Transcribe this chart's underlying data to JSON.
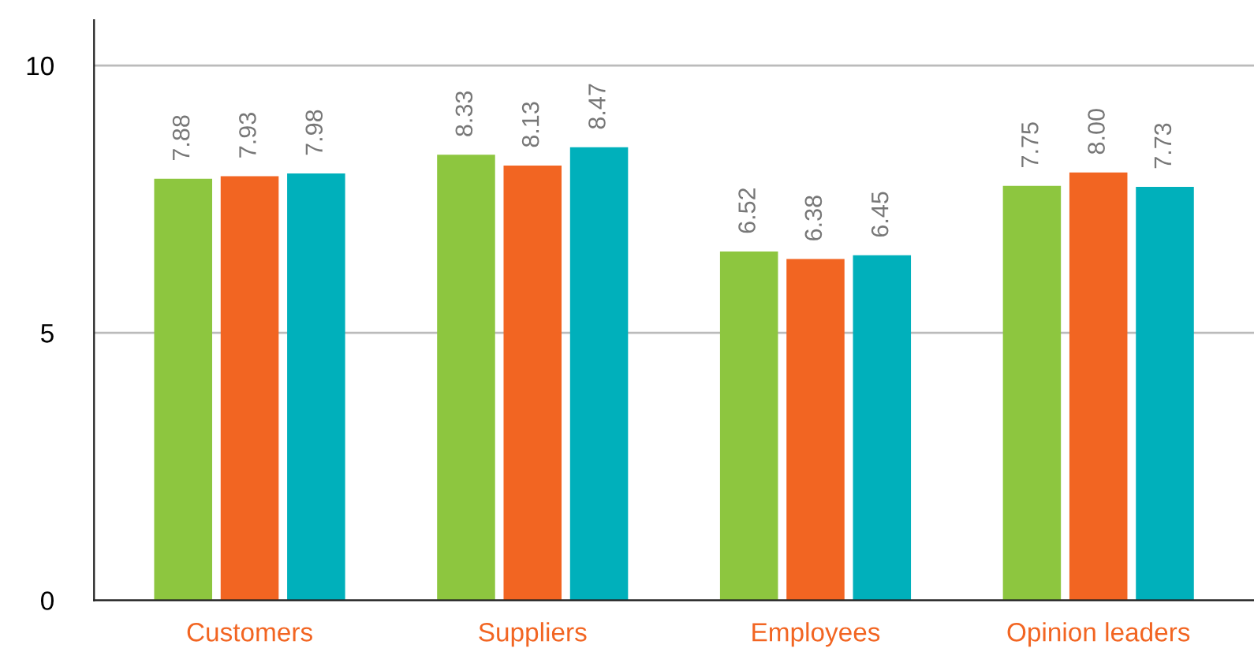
{
  "chart_data": {
    "type": "bar",
    "categories": [
      "Customers",
      "Suppliers",
      "Employees",
      "Opinion leaders"
    ],
    "series": [
      {
        "color": "#8dc63f",
        "values": [
          7.88,
          8.33,
          6.52,
          7.75
        ]
      },
      {
        "color": "#f26522",
        "values": [
          7.93,
          8.13,
          6.38,
          8.0
        ]
      },
      {
        "color": "#00b0bb",
        "values": [
          7.98,
          8.47,
          6.45,
          7.73
        ]
      }
    ],
    "value_labels": [
      [
        "7.88",
        "8.33",
        "6.52",
        "7.75"
      ],
      [
        "7.93",
        "8.13",
        "6.38",
        "8.00"
      ],
      [
        "7.98",
        "8.47",
        "6.45",
        "7.73"
      ]
    ],
    "ylim": [
      0,
      10.85
    ],
    "yticks": [
      0,
      5,
      10
    ],
    "grid": "y",
    "legend": false
  }
}
